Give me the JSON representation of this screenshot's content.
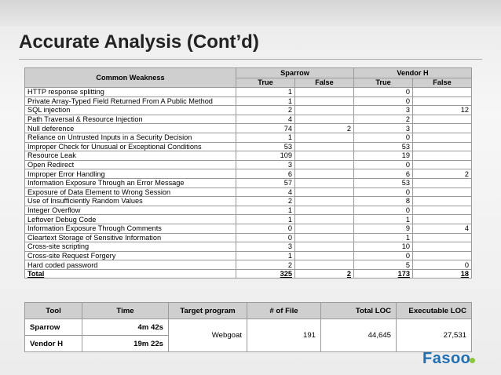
{
  "slide": {
    "title": "Accurate Analysis (Cont’d)",
    "logo_text": "Fasoo"
  },
  "main_table": {
    "headers": {
      "weakness": "Common Weakness",
      "sparrow": "Sparrow",
      "vendor_h": "Vendor H",
      "true_label": "True",
      "false_label": "False"
    },
    "rows": [
      {
        "name": "HTTP response splitting",
        "s_true": "1",
        "s_false": "",
        "v_true": "0",
        "v_false": ""
      },
      {
        "name": "Private Array-Typed Field Returned From A Public Method",
        "s_true": "1",
        "s_false": "",
        "v_true": "0",
        "v_false": ""
      },
      {
        "name": "SQL injection",
        "s_true": "2",
        "s_false": "",
        "v_true": "3",
        "v_false": "12"
      },
      {
        "name": "Path Traversal & Resource Injection",
        "s_true": "4",
        "s_false": "",
        "v_true": "2",
        "v_false": ""
      },
      {
        "name": "Null deference",
        "s_true": "74",
        "s_false": "2",
        "v_true": "3",
        "v_false": ""
      },
      {
        "name": "Reliance on Untrusted Inputs in a Security Decision",
        "s_true": "1",
        "s_false": "",
        "v_true": "0",
        "v_false": ""
      },
      {
        "name": "Improper Check for Unusual or Exceptional Conditions",
        "s_true": "53",
        "s_false": "",
        "v_true": "53",
        "v_false": ""
      },
      {
        "name": "Resource Leak",
        "s_true": "109",
        "s_false": "",
        "v_true": "19",
        "v_false": ""
      },
      {
        "name": "Open Redirect",
        "s_true": "3",
        "s_false": "",
        "v_true": "0",
        "v_false": ""
      },
      {
        "name": "Improper Error Handling",
        "s_true": "6",
        "s_false": "",
        "v_true": "6",
        "v_false": "2"
      },
      {
        "name": "Information Exposure Through an Error Message",
        "s_true": "57",
        "s_false": "",
        "v_true": "53",
        "v_false": ""
      },
      {
        "name": "Exposure of Data Element to Wrong Session",
        "s_true": "4",
        "s_false": "",
        "v_true": "0",
        "v_false": ""
      },
      {
        "name": "Use of Insufficiently Random Values",
        "s_true": "2",
        "s_false": "",
        "v_true": "8",
        "v_false": ""
      },
      {
        "name": "Integer Overflow",
        "s_true": "1",
        "s_false": "",
        "v_true": "0",
        "v_false": ""
      },
      {
        "name": "Leftover Debug Code",
        "s_true": "1",
        "s_false": "",
        "v_true": "1",
        "v_false": ""
      },
      {
        "name": "Information Exposure Through Comments",
        "s_true": "0",
        "s_false": "",
        "v_true": "9",
        "v_false": "4"
      },
      {
        "name": "Cleartext Storage of Sensitive Information",
        "s_true": "0",
        "s_false": "",
        "v_true": "1",
        "v_false": ""
      },
      {
        "name": "Cross-site scripting",
        "s_true": "3",
        "s_false": "",
        "v_true": "10",
        "v_false": ""
      },
      {
        "name": "Cross-site Request Forgery",
        "s_true": "1",
        "s_false": "",
        "v_true": "0",
        "v_false": ""
      },
      {
        "name": "Hard coded password",
        "s_true": "2",
        "s_false": "",
        "v_true": "5",
        "v_false": "0"
      }
    ],
    "total": {
      "name": "Total",
      "s_true": "325",
      "s_false": "2",
      "v_true": "173",
      "v_false": "18"
    }
  },
  "summary_table": {
    "headers": {
      "tool": "Tool",
      "time": "Time",
      "target": "Target program",
      "files": "# of File",
      "total_loc": "Total LOC",
      "exec_loc": "Executable LOC"
    },
    "rows": [
      {
        "tool": "Sparrow",
        "time": "4m 42s"
      },
      {
        "tool": "Vendor H",
        "time": "19m 22s"
      }
    ],
    "shared": {
      "target": "Webgoat",
      "files": "191",
      "total_loc": "44,645",
      "exec_loc": "27,531"
    }
  },
  "colors": {
    "header_bg": "#cfcfcf",
    "logo_blue": "#1f6fb5",
    "logo_green": "#8cc63f"
  }
}
